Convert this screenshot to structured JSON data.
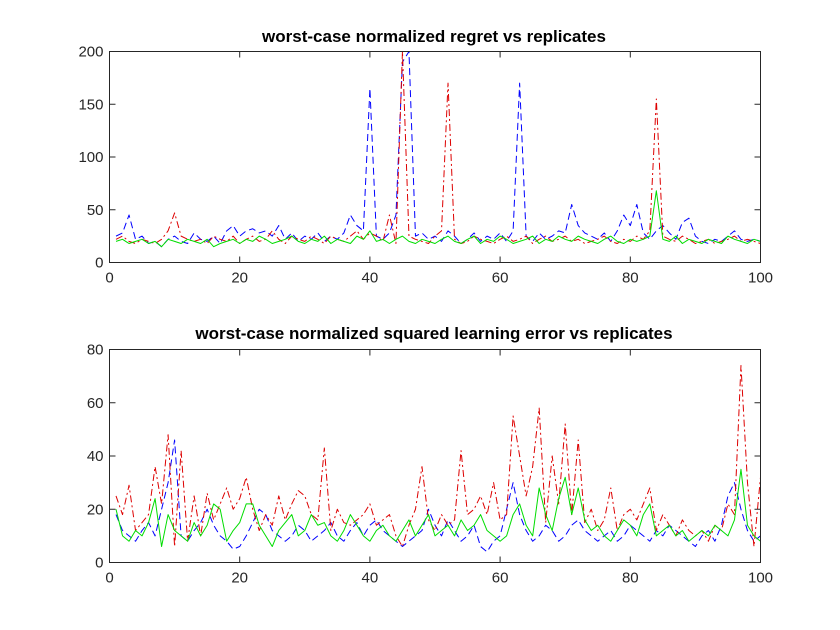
{
  "chart_data": [
    {
      "type": "line",
      "title": "worst-case normalized regret vs replicates",
      "xlim": [
        0,
        100
      ],
      "ylim": [
        0,
        200
      ],
      "xticks": [
        0,
        20,
        40,
        60,
        80,
        100
      ],
      "yticks": [
        0,
        50,
        100,
        150,
        200
      ],
      "grid": false,
      "x": [
        1,
        2,
        3,
        4,
        5,
        6,
        7,
        8,
        9,
        10,
        11,
        12,
        13,
        14,
        15,
        16,
        17,
        18,
        19,
        20,
        21,
        22,
        23,
        24,
        25,
        26,
        27,
        28,
        29,
        30,
        31,
        32,
        33,
        34,
        35,
        36,
        37,
        38,
        39,
        40,
        41,
        42,
        43,
        44,
        45,
        46,
        47,
        48,
        49,
        50,
        51,
        52,
        53,
        54,
        55,
        56,
        57,
        58,
        59,
        60,
        61,
        62,
        63,
        64,
        65,
        66,
        67,
        68,
        69,
        70,
        71,
        72,
        73,
        74,
        75,
        76,
        77,
        78,
        79,
        80,
        81,
        82,
        83,
        84,
        85,
        86,
        87,
        88,
        89,
        90,
        91,
        92,
        93,
        94,
        95,
        96,
        97,
        98,
        99,
        100
      ],
      "series": [
        {
          "color": "#0000ff",
          "dash": "dashed",
          "values": [
            25,
            28,
            45,
            22,
            25,
            18,
            20,
            15,
            22,
            25,
            20,
            18,
            28,
            22,
            20,
            25,
            18,
            30,
            35,
            25,
            30,
            32,
            28,
            30,
            25,
            35,
            22,
            28,
            20,
            25,
            22,
            28,
            20,
            25,
            22,
            28,
            45,
            35,
            30,
            165,
            25,
            22,
            28,
            45,
            190,
            200,
            25,
            28,
            22,
            25,
            20,
            30,
            25,
            18,
            22,
            28,
            20,
            25,
            22,
            28,
            20,
            30,
            170,
            25,
            20,
            28,
            22,
            25,
            30,
            28,
            55,
            35,
            28,
            25,
            22,
            28,
            20,
            30,
            45,
            35,
            55,
            28,
            22,
            30,
            35,
            28,
            22,
            38,
            42,
            25,
            20,
            18,
            22,
            20,
            25,
            30,
            22,
            20,
            22,
            20
          ],
          "_note": ""
        },
        {
          "color": "#dd0000",
          "dash": "dashdot",
          "values": [
            22,
            25,
            20,
            18,
            22,
            20,
            18,
            22,
            30,
            47,
            25,
            22,
            20,
            22,
            18,
            25,
            22,
            20,
            25,
            18,
            22,
            25,
            20,
            22,
            30,
            22,
            18,
            25,
            22,
            20,
            25,
            22,
            18,
            25,
            22,
            20,
            25,
            30,
            22,
            28,
            25,
            20,
            45,
            18,
            200,
            25,
            22,
            20,
            18,
            25,
            30,
            170,
            22,
            18,
            20,
            25,
            22,
            20,
            18,
            22,
            25,
            20,
            22,
            25,
            18,
            22,
            25,
            20,
            22,
            25,
            20,
            22,
            18,
            20,
            22,
            25,
            20,
            18,
            22,
            20,
            25,
            22,
            30,
            155,
            25,
            22,
            20,
            25,
            22,
            18,
            20,
            22,
            18,
            20,
            22,
            25,
            20,
            22,
            20,
            18
          ]
        },
        {
          "color": "#00dd00",
          "dash": "solid",
          "values": [
            20,
            22,
            18,
            20,
            22,
            18,
            20,
            15,
            22,
            20,
            18,
            22,
            20,
            18,
            22,
            15,
            18,
            20,
            22,
            18,
            22,
            20,
            25,
            22,
            18,
            20,
            22,
            25,
            20,
            18,
            22,
            20,
            25,
            18,
            22,
            20,
            18,
            25,
            22,
            30,
            20,
            22,
            18,
            22,
            25,
            20,
            18,
            22,
            20,
            18,
            22,
            25,
            20,
            18,
            22,
            25,
            18,
            22,
            20,
            25,
            22,
            18,
            20,
            22,
            25,
            18,
            22,
            20,
            25,
            22,
            20,
            25,
            22,
            20,
            18,
            22,
            25,
            20,
            18,
            22,
            20,
            22,
            25,
            68,
            22,
            20,
            25,
            18,
            22,
            20,
            18,
            22,
            20,
            18,
            25,
            22,
            20,
            18,
            22,
            20
          ]
        }
      ]
    },
    {
      "type": "line",
      "title": "worst-case normalized squared learning error vs replicates",
      "xlim": [
        0,
        100
      ],
      "ylim": [
        0,
        80
      ],
      "xticks": [
        0,
        20,
        40,
        60,
        80,
        100
      ],
      "yticks": [
        0,
        20,
        40,
        60,
        80
      ],
      "grid": false,
      "x": [
        1,
        2,
        3,
        4,
        5,
        6,
        7,
        8,
        9,
        10,
        11,
        12,
        13,
        14,
        15,
        16,
        17,
        18,
        19,
        20,
        21,
        22,
        23,
        24,
        25,
        26,
        27,
        28,
        29,
        30,
        31,
        32,
        33,
        34,
        35,
        36,
        37,
        38,
        39,
        40,
        41,
        42,
        43,
        44,
        45,
        46,
        47,
        48,
        49,
        50,
        51,
        52,
        53,
        54,
        55,
        56,
        57,
        58,
        59,
        60,
        61,
        62,
        63,
        64,
        65,
        66,
        67,
        68,
        69,
        70,
        71,
        72,
        73,
        74,
        75,
        76,
        77,
        78,
        79,
        80,
        81,
        82,
        83,
        84,
        85,
        86,
        87,
        88,
        89,
        90,
        91,
        92,
        93,
        94,
        95,
        96,
        97,
        98,
        99,
        100
      ],
      "series": [
        {
          "color": "#0000ff",
          "dash": "dashed",
          "values": [
            18,
            12,
            10,
            8,
            12,
            15,
            10,
            20,
            30,
            46,
            10,
            8,
            12,
            15,
            20,
            14,
            10,
            8,
            5,
            6,
            10,
            15,
            20,
            18,
            12,
            10,
            8,
            10,
            14,
            12,
            8,
            10,
            12,
            15,
            10,
            8,
            12,
            15,
            10,
            14,
            16,
            12,
            10,
            8,
            6,
            8,
            10,
            12,
            20,
            14,
            10,
            16,
            12,
            8,
            10,
            14,
            6,
            4,
            8,
            10,
            20,
            30,
            18,
            12,
            8,
            10,
            14,
            12,
            8,
            10,
            14,
            16,
            12,
            10,
            8,
            10,
            12,
            8,
            10,
            14,
            12,
            10,
            8,
            12,
            10,
            14,
            12,
            10,
            8,
            6,
            10,
            12,
            8,
            14,
            25,
            30,
            20,
            12,
            8,
            10
          ]
        },
        {
          "color": "#dd0000",
          "dash": "dashdot",
          "values": [
            25,
            18,
            29,
            12,
            15,
            18,
            36,
            22,
            48,
            6,
            42,
            8,
            25,
            10,
            26,
            16,
            22,
            28,
            20,
            24,
            32,
            20,
            12,
            18,
            14,
            25,
            16,
            22,
            27,
            25,
            18,
            16,
            43,
            12,
            20,
            15,
            14,
            16,
            18,
            22,
            14,
            16,
            18,
            10,
            6,
            14,
            20,
            36,
            16,
            12,
            18,
            14,
            16,
            42,
            18,
            20,
            25,
            18,
            30,
            16,
            18,
            55,
            40,
            25,
            36,
            58,
            15,
            40,
            22,
            52,
            18,
            46,
            15,
            20,
            12,
            16,
            28,
            12,
            18,
            20,
            16,
            22,
            28,
            12,
            18,
            14,
            10,
            16,
            12,
            10,
            12,
            8,
            14,
            12,
            22,
            18,
            74,
            30,
            6,
            32
          ]
        },
        {
          "color": "#00dd00",
          "dash": "solid",
          "values": [
            20,
            10,
            8,
            12,
            10,
            15,
            24,
            6,
            18,
            12,
            10,
            8,
            15,
            10,
            14,
            22,
            20,
            8,
            12,
            15,
            22,
            22,
            14,
            10,
            6,
            12,
            15,
            18,
            10,
            12,
            18,
            14,
            15,
            10,
            8,
            12,
            18,
            14,
            10,
            8,
            12,
            14,
            10,
            8,
            12,
            16,
            10,
            14,
            18,
            10,
            12,
            14,
            10,
            16,
            12,
            14,
            18,
            12,
            10,
            8,
            10,
            18,
            22,
            14,
            10,
            28,
            18,
            12,
            24,
            32,
            18,
            28,
            16,
            12,
            14,
            10,
            8,
            12,
            16,
            14,
            10,
            18,
            22,
            10,
            12,
            14,
            10,
            12,
            8,
            10,
            12,
            10,
            14,
            12,
            10,
            16,
            35,
            14,
            10,
            8
          ]
        }
      ]
    }
  ]
}
